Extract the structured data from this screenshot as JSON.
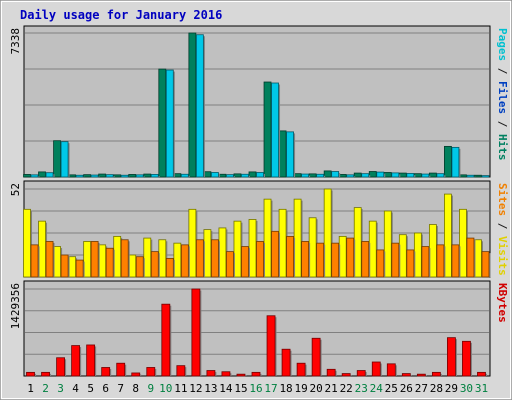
{
  "title": "Daily usage for January 2016",
  "chart_data": [
    {
      "type": "bar",
      "name": "Pages / Files / Hits",
      "ymax": 7338,
      "ymax_label": "7338",
      "right_label": [
        {
          "text": "Pages",
          "color": "#00c0d0"
        },
        {
          "text": " / ",
          "color": "#202020"
        },
        {
          "text": "Files",
          "color": "#0040c0"
        },
        {
          "text": " / ",
          "color": "#202020"
        },
        {
          "text": "Hits",
          "color": "#008060"
        }
      ],
      "series": [
        {
          "name": "Hits",
          "color": "#00805c",
          "values": [
            130,
            260,
            1850,
            110,
            120,
            150,
            110,
            130,
            150,
            5500,
            170,
            7338,
            270,
            140,
            160,
            260,
            4840,
            2350,
            170,
            160,
            310,
            130,
            200,
            280,
            230,
            200,
            170,
            200,
            1560,
            110,
            90
          ]
        },
        {
          "name": "Files",
          "color": "#00c8e8",
          "values": [
            110,
            220,
            1800,
            90,
            100,
            120,
            90,
            110,
            130,
            5450,
            140,
            7250,
            230,
            120,
            140,
            230,
            4790,
            2300,
            150,
            140,
            280,
            110,
            170,
            250,
            210,
            180,
            150,
            170,
            1510,
            90,
            70
          ]
        }
      ]
    },
    {
      "type": "bar",
      "name": "Sites / Visits",
      "ymax": 52,
      "ymax_label": "52",
      "right_label": [
        {
          "text": "Sites",
          "color": "#f08000"
        },
        {
          "text": " / ",
          "color": "#202020"
        },
        {
          "text": "Visits",
          "color": "#e0d000"
        }
      ],
      "series": [
        {
          "name": "Visits",
          "color": "#ffff00",
          "values": [
            40,
            33,
            18,
            12,
            21,
            19,
            24,
            13,
            23,
            22,
            20,
            40,
            28,
            29,
            33,
            34,
            46,
            40,
            46,
            35,
            52,
            24,
            41,
            33,
            39,
            25,
            26,
            31,
            49,
            40,
            22
          ]
        },
        {
          "name": "Sites",
          "color": "#ff8000",
          "values": [
            19,
            21,
            13,
            10,
            21,
            17,
            22,
            12,
            15,
            11,
            19,
            22,
            22,
            15,
            18,
            21,
            27,
            24,
            21,
            20,
            20,
            23,
            21,
            16,
            20,
            16,
            18,
            19,
            19,
            23,
            15
          ]
        }
      ]
    },
    {
      "type": "bar",
      "name": "KBytes",
      "ymax": 1429356,
      "ymax_label": "1429356",
      "right_label": [
        {
          "text": "KBytes",
          "color": "#d00000"
        }
      ],
      "series": [
        {
          "name": "KBytes",
          "color": "#ff0000",
          "values": [
            60000,
            60000,
            300000,
            500000,
            510000,
            140000,
            210000,
            50000,
            140000,
            1180000,
            170000,
            1429356,
            90000,
            70000,
            30000,
            60000,
            990000,
            440000,
            210000,
            620000,
            110000,
            40000,
            90000,
            230000,
            200000,
            40000,
            30000,
            60000,
            630000,
            570000,
            60000
          ]
        }
      ]
    }
  ],
  "days": [
    "1",
    "2",
    "3",
    "4",
    "5",
    "6",
    "7",
    "8",
    "9",
    "10",
    "11",
    "12",
    "13",
    "14",
    "15",
    "16",
    "17",
    "18",
    "19",
    "20",
    "21",
    "22",
    "23",
    "24",
    "25",
    "26",
    "27",
    "28",
    "29",
    "30",
    "31"
  ],
  "weekend_days": [
    "2",
    "3",
    "9",
    "10",
    "16",
    "17",
    "23",
    "24",
    "30",
    "31"
  ],
  "colors": {
    "day_label": "#000000",
    "weekend_label": "#008040",
    "title": "#0000c0",
    "plot_bg": "#c0c0c0",
    "frame_bg": "#d8d8d8"
  }
}
